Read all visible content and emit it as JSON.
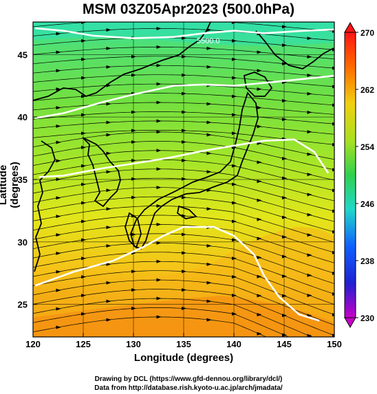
{
  "title": "MSM 03Z05Apr2023 (500.0hPa)",
  "x_axis": {
    "label": "Longitude (degrees)",
    "ticks": [
      "120",
      "125",
      "130",
      "135",
      "140",
      "145",
      "150"
    ]
  },
  "y_axis": {
    "label": "Latitude  (degrees)",
    "ticks": [
      "25",
      "30",
      "35",
      "40",
      "45"
    ]
  },
  "contour_label": "5500.0",
  "colorbar": {
    "ticks": [
      "270",
      "262",
      "254",
      "246",
      "238",
      "230"
    ],
    "min": 230,
    "max": 270
  },
  "footer": {
    "line1": "Drawing by DCL (https://www.gfd-dennou.org/library/dcl/)",
    "line2": "Data from http://database.rish.kyoto-u.ac.jp/arch/jmadata/"
  },
  "chart_data": {
    "type": "heatmap",
    "title": "MSM 03Z05Apr2023 (500.0hPa)",
    "xlabel": "Longitude (degrees)",
    "ylabel": "Latitude  (degrees)",
    "xlim": [
      120,
      150
    ],
    "ylim": [
      22.4,
      47.6
    ],
    "x_ticks": [
      120,
      125,
      130,
      135,
      140,
      145,
      150
    ],
    "y_ticks": [
      25,
      30,
      35,
      40,
      45
    ],
    "grid": true,
    "color_scale": {
      "min": 230,
      "max": 270,
      "ticks": [
        230,
        238,
        246,
        254,
        262,
        270
      ]
    },
    "field_samples": [
      {
        "lon": 122,
        "lat": 47,
        "value": 249
      },
      {
        "lon": 135,
        "lat": 46,
        "value": 250
      },
      {
        "lon": 145,
        "lat": 45,
        "value": 252
      },
      {
        "lon": 125,
        "lat": 40,
        "value": 253
      },
      {
        "lon": 140,
        "lat": 40,
        "value": 255
      },
      {
        "lon": 130,
        "lat": 35,
        "value": 258
      },
      {
        "lon": 145,
        "lat": 35,
        "value": 258
      },
      {
        "lon": 125,
        "lat": 30,
        "value": 261
      },
      {
        "lon": 140,
        "lat": 30,
        "value": 262
      },
      {
        "lon": 130,
        "lat": 25,
        "value": 265
      },
      {
        "lon": 148,
        "lat": 23,
        "value": 267
      }
    ],
    "contour_labels": [
      "5500.0"
    ],
    "contours": [
      {
        "points": [
          [
            120.2,
            47.1
          ],
          [
            123,
            46.9
          ],
          [
            126,
            46.5
          ],
          [
            130,
            46.3
          ],
          [
            134,
            46.4
          ],
          [
            137,
            46.7
          ],
          [
            140,
            46.9
          ],
          [
            143,
            46.7
          ],
          [
            147,
            46.9
          ],
          [
            150,
            47.0
          ]
        ]
      },
      {
        "points": [
          [
            120.2,
            39.9
          ],
          [
            123,
            40.3
          ],
          [
            127,
            41.2
          ],
          [
            130,
            41.8
          ],
          [
            134,
            42.5
          ],
          [
            137,
            42.6
          ],
          [
            140,
            42.5
          ],
          [
            144,
            42.8
          ],
          [
            150,
            43.3
          ]
        ]
      },
      {
        "points": [
          [
            120.6,
            35.2
          ],
          [
            123,
            35.3
          ],
          [
            127,
            35.9
          ],
          [
            131,
            36.4
          ],
          [
            134,
            36.8
          ],
          [
            137,
            37.3
          ],
          [
            140,
            37.7
          ],
          [
            143,
            38.1
          ],
          [
            146,
            38.2
          ],
          [
            148,
            37.2
          ],
          [
            149.4,
            35.5
          ]
        ]
      },
      {
        "points": [
          [
            120.2,
            26.5
          ],
          [
            124,
            27.6
          ],
          [
            128,
            28.5
          ],
          [
            131,
            29.6
          ],
          [
            133,
            30.5
          ],
          [
            135,
            31.2
          ],
          [
            138,
            31.2
          ],
          [
            140,
            30.5
          ],
          [
            142,
            29.0
          ],
          [
            143,
            27.3
          ],
          [
            144.5,
            25.6
          ],
          [
            146.5,
            24.2
          ],
          [
            148.5,
            23.7
          ]
        ]
      }
    ]
  }
}
